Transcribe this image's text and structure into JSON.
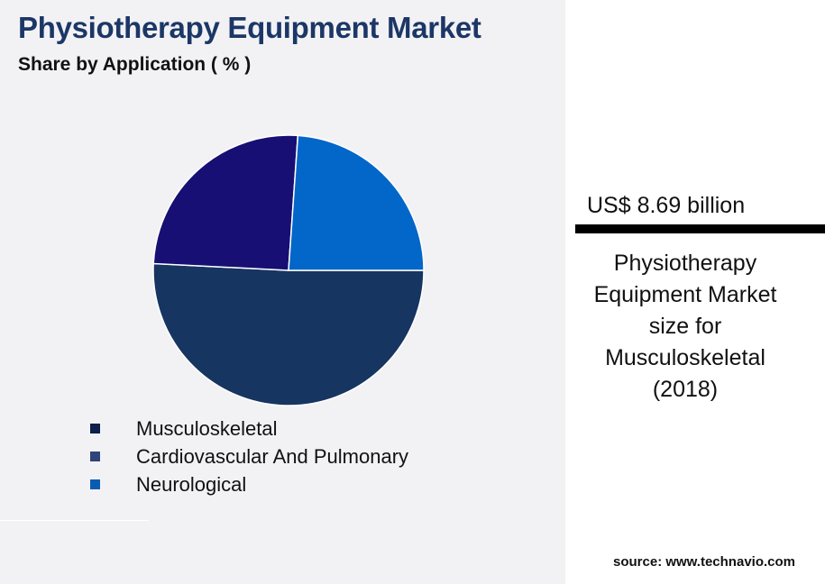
{
  "header": {
    "title": "Physiotherapy Equipment Market",
    "subtitle": "Share by Application ( % )"
  },
  "chart_data": {
    "type": "pie",
    "title": "Physiotherapy Equipment Market",
    "subtitle": "Share by Application ( % )",
    "categories": [
      "Musculoskeletal",
      "Cardiovascular And Pulmonary",
      "Neurological"
    ],
    "values": [
      50.8,
      25.3,
      23.9
    ],
    "slice_colors": [
      "#163561",
      "#170f73",
      "#0366c9"
    ],
    "legend_colors": [
      "#0d1f4a",
      "#2f4478",
      "#0a5cb0"
    ],
    "start_angle_deg": 0,
    "direction": "clockwise",
    "legend_position": "bottom"
  },
  "side_panel": {
    "value": "US$ 8.69 billion",
    "description": "Physiotherapy Equipment Market size for Musculoskeletal (2018)"
  },
  "footer": {
    "source": "source: www.technavio.com"
  }
}
